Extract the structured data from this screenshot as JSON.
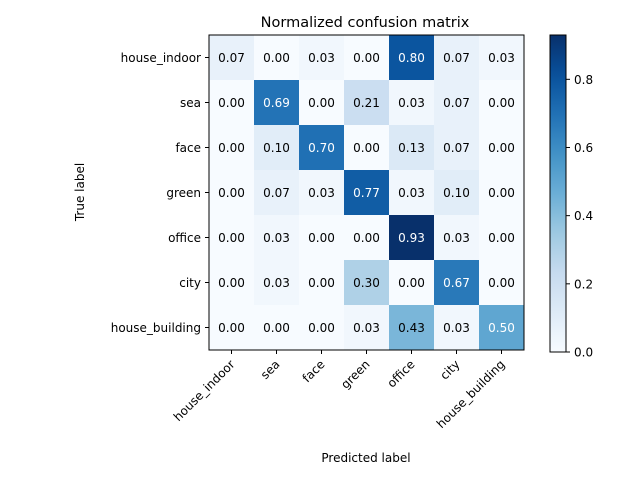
{
  "chart_data": {
    "type": "heatmap",
    "title": "Normalized confusion matrix",
    "xlabel": "Predicted label",
    "ylabel": "True label",
    "x_categories": [
      "house_indoor",
      "sea",
      "face",
      "green",
      "office",
      "city",
      "house_building"
    ],
    "y_categories": [
      "house_indoor",
      "sea",
      "face",
      "green",
      "office",
      "city",
      "house_building"
    ],
    "values": [
      [
        0.07,
        0.0,
        0.03,
        0.0,
        0.8,
        0.07,
        0.03
      ],
      [
        0.0,
        0.69,
        0.0,
        0.21,
        0.03,
        0.07,
        0.0
      ],
      [
        0.0,
        0.1,
        0.7,
        0.0,
        0.13,
        0.07,
        0.0
      ],
      [
        0.0,
        0.07,
        0.03,
        0.77,
        0.03,
        0.1,
        0.0
      ],
      [
        0.0,
        0.03,
        0.0,
        0.0,
        0.93,
        0.03,
        0.0
      ],
      [
        0.0,
        0.03,
        0.0,
        0.3,
        0.0,
        0.67,
        0.0
      ],
      [
        0.0,
        0.0,
        0.0,
        0.03,
        0.43,
        0.03,
        0.5
      ]
    ],
    "value_labels": [
      [
        "0.07",
        "0.00",
        "0.03",
        "0.00",
        "0.80",
        "0.07",
        "0.03"
      ],
      [
        "0.00",
        "0.69",
        "0.00",
        "0.21",
        "0.03",
        "0.07",
        "0.00"
      ],
      [
        "0.00",
        "0.10",
        "0.70",
        "0.00",
        "0.13",
        "0.07",
        "0.00"
      ],
      [
        "0.00",
        "0.07",
        "0.03",
        "0.77",
        "0.03",
        "0.10",
        "0.00"
      ],
      [
        "0.00",
        "0.03",
        "0.00",
        "0.00",
        "0.93",
        "0.03",
        "0.00"
      ],
      [
        "0.00",
        "0.03",
        "0.00",
        "0.30",
        "0.00",
        "0.67",
        "0.00"
      ],
      [
        "0.00",
        "0.00",
        "0.00",
        "0.03",
        "0.43",
        "0.03",
        "0.50"
      ]
    ],
    "colormap": "Blues",
    "color_range": [
      0.0,
      0.93
    ],
    "colorbar": {
      "ticks": [
        0.0,
        0.2,
        0.4,
        0.6,
        0.8
      ],
      "tick_labels": [
        "0.0",
        "0.2",
        "0.4",
        "0.6",
        "0.8"
      ]
    },
    "text_color_light": "#ffffff",
    "text_color_dark": "#000000",
    "grid": false
  }
}
